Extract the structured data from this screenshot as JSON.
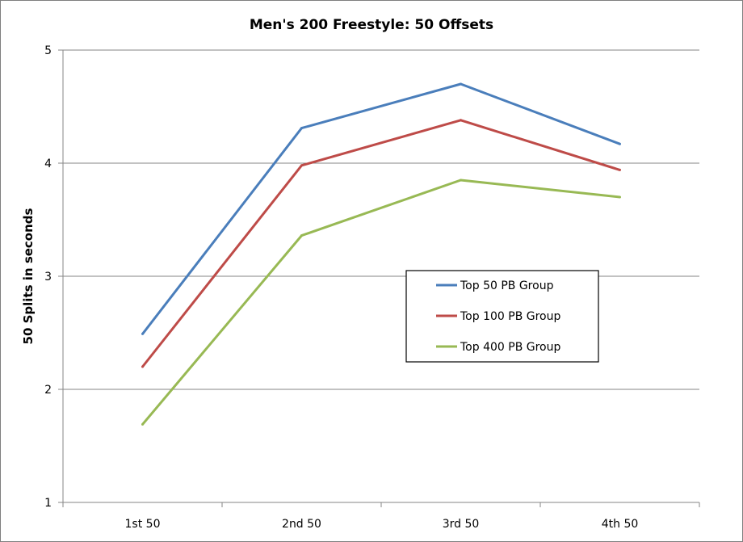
{
  "chart_data": {
    "type": "line",
    "title": "Men's 200 Freestyle: 50 Offsets",
    "xlabel": "",
    "ylabel": "50 Splits in seconds",
    "categories": [
      "1st 50",
      "2nd 50",
      "3rd 50",
      "4th 50"
    ],
    "ylim": [
      1,
      5
    ],
    "yticks": [
      1,
      2,
      3,
      4,
      5
    ],
    "grid": true,
    "legend_position": "center-right",
    "series": [
      {
        "name": "Top 50 PB Group",
        "color": "#4a7ebb",
        "values": [
          2.49,
          4.31,
          4.7,
          4.17
        ]
      },
      {
        "name": "Top 100 PB Group",
        "color": "#be4b48",
        "values": [
          2.2,
          3.98,
          4.38,
          3.94
        ]
      },
      {
        "name": "Top 400 PB Group",
        "color": "#98b954",
        "values": [
          1.69,
          3.36,
          3.85,
          3.7
        ]
      }
    ]
  }
}
